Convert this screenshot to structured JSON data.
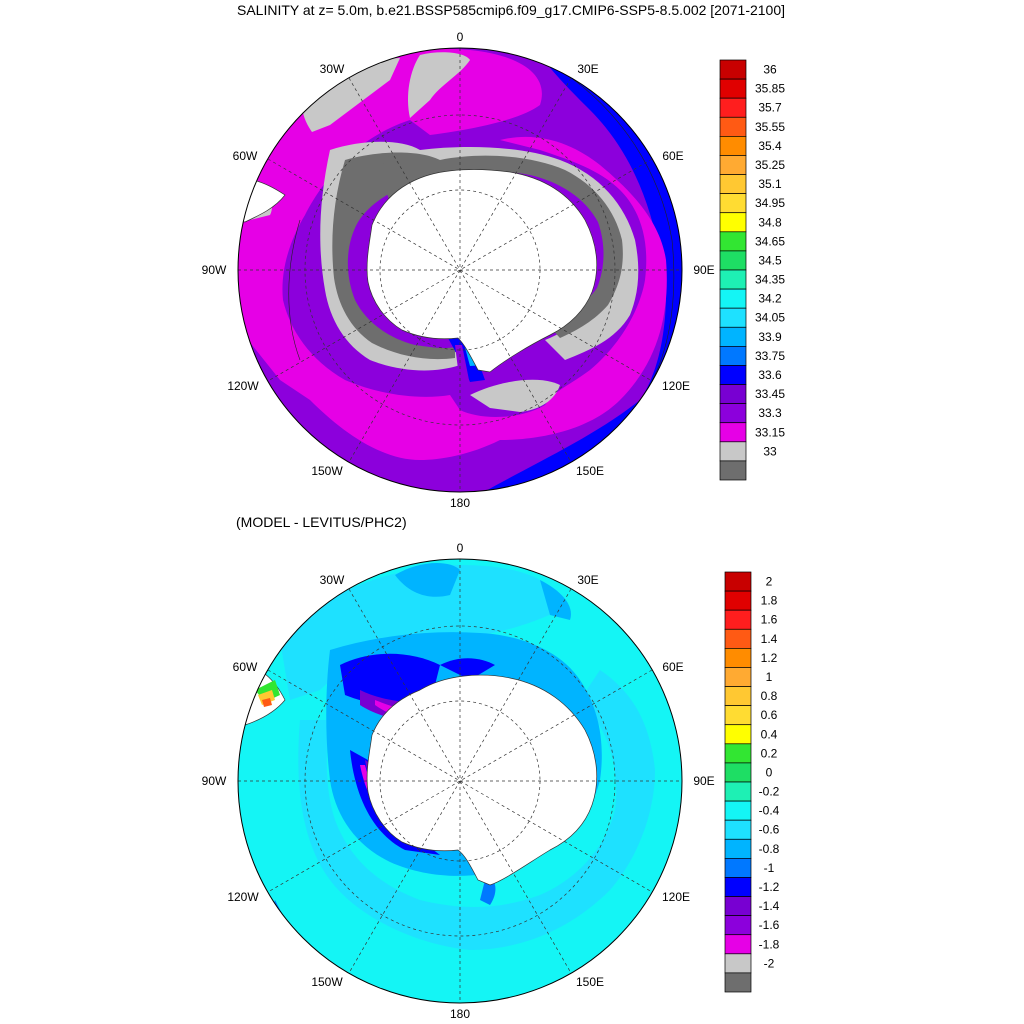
{
  "panels": [
    {
      "title": "SALINITY at z=   5.0m, b.e21.BSSP585cmip6.f09_g17.CMIP6-SSP5-8.5.002 [2071-2100]",
      "legend": {
        "labels": [
          "36",
          "35.85",
          "35.7",
          "35.55",
          "35.4",
          "35.25",
          "35.1",
          "34.95",
          "34.8",
          "34.65",
          "34.5",
          "34.35",
          "34.2",
          "34.05",
          "33.9",
          "33.75",
          "33.6",
          "33.45",
          "33.3",
          "33.15",
          "33"
        ],
        "colors": [
          "#c80000",
          "#e00000",
          "#ff1e1e",
          "#ff5a14",
          "#ff8c00",
          "#ffaa32",
          "#ffc832",
          "#ffdc32",
          "#ffff00",
          "#32e632",
          "#1ede64",
          "#1ef0b4",
          "#14f5f5",
          "#1ee1ff",
          "#00b4ff",
          "#0078ff",
          "#0000ff",
          "#7800d2",
          "#8c00dc",
          "#e600e6",
          "#c8c8c8",
          "#6e6e6e"
        ]
      },
      "lon_labels": [
        "0",
        "30E",
        "60E",
        "90E",
        "120E",
        "150E",
        "180",
        "150W",
        "120W",
        "90W",
        "60W",
        "30W"
      ]
    },
    {
      "title": "(MODEL - LEVITUS/PHC2)",
      "legend": {
        "labels": [
          "2",
          "1.8",
          "1.6",
          "1.4",
          "1.2",
          "1",
          "0.8",
          "0.6",
          "0.4",
          "0.2",
          "0",
          "-0.2",
          "-0.4",
          "-0.6",
          "-0.8",
          "-1",
          "-1.2",
          "-1.4",
          "-1.6",
          "-1.8",
          "-2"
        ],
        "colors": [
          "#c80000",
          "#e00000",
          "#ff1e1e",
          "#ff5a14",
          "#ff8c00",
          "#ffaa32",
          "#ffc832",
          "#ffdc32",
          "#ffff00",
          "#32e632",
          "#1ede64",
          "#1ef0b4",
          "#14f5f5",
          "#1ee1ff",
          "#00b4ff",
          "#0078ff",
          "#0000ff",
          "#7800d2",
          "#8c00dc",
          "#e600e6",
          "#c8c8c8",
          "#6e6e6e"
        ]
      },
      "lon_labels": [
        "0",
        "30E",
        "60E",
        "90E",
        "120E",
        "150E",
        "180",
        "150W",
        "120W",
        "90W",
        "60W",
        "30W"
      ]
    }
  ]
}
